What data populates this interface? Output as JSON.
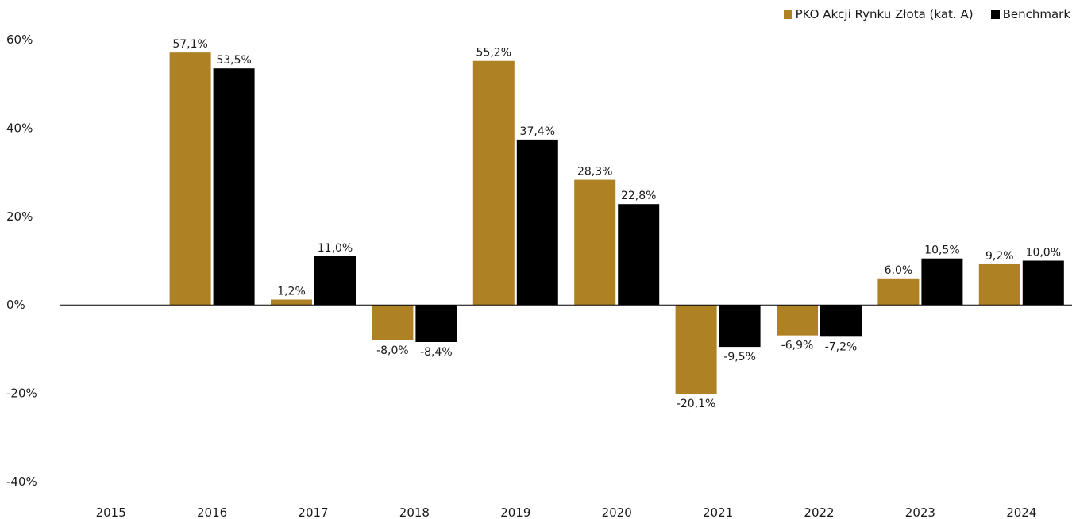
{
  "chart_data": {
    "type": "bar",
    "categories": [
      "2015",
      "2016",
      "2017",
      "2018",
      "2019",
      "2020",
      "2021",
      "2022",
      "2023",
      "2024"
    ],
    "series": [
      {
        "name": "PKO Akcji Rynku Złota (kat. A)",
        "color": "#AD8124",
        "values": [
          null,
          57.1,
          1.2,
          -8.0,
          55.2,
          28.3,
          -20.1,
          -6.9,
          6.0,
          9.2
        ],
        "labels": [
          "",
          "57,1%",
          "1,2%",
          "-8,0%",
          "55,2%",
          "28,3%",
          "-20,1%",
          "-6,9%",
          "6,0%",
          "9,2%"
        ]
      },
      {
        "name": "Benchmark",
        "color": "#000000",
        "values": [
          null,
          53.5,
          11.0,
          -8.4,
          37.4,
          22.8,
          -9.5,
          -7.2,
          10.5,
          10.0
        ],
        "labels": [
          "",
          "53,5%",
          "11,0%",
          "-8,4%",
          "37,4%",
          "22,8%",
          "-9,5%",
          "-7,2%",
          "10,5%",
          "10,0%"
        ]
      }
    ],
    "yticks": [
      60,
      40,
      20,
      0,
      -20,
      -40
    ],
    "ytick_labels": [
      "60%",
      "40%",
      "20%",
      "0%",
      "-20%",
      "-40%"
    ],
    "ylim": [
      -40,
      60
    ],
    "legend_position": "top-right",
    "grid": false
  }
}
